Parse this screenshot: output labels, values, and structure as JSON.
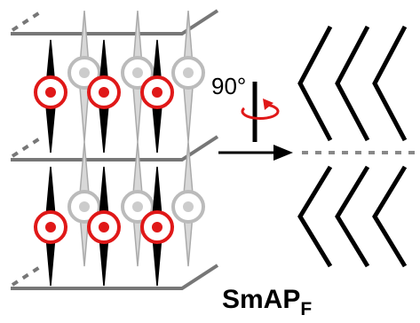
{
  "labels": {
    "angle": "90°",
    "phase": {
      "name": "SmAP",
      "subscript": "F"
    }
  }
}
